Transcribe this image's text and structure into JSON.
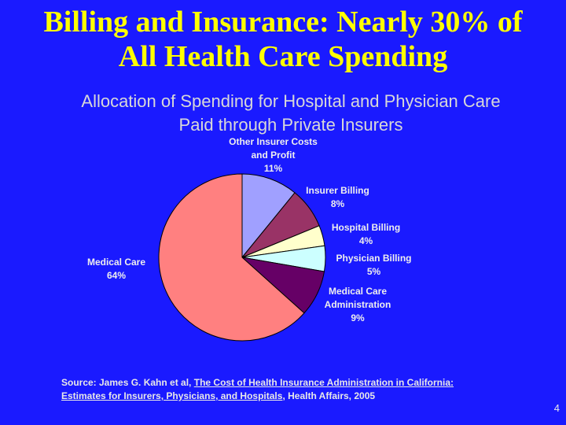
{
  "slide": {
    "title_line1": "Billing and Insurance: Nearly 30% of",
    "title_line2": "All Health Care Spending",
    "page_number": "4"
  },
  "chart_data": {
    "type": "pie",
    "title_line1": "Allocation of Spending for Hospital and Physician Care",
    "title_line2": "Paid through Private Insurers",
    "slices": [
      {
        "name_lines": [
          "Other Insurer Costs",
          "and Profit"
        ],
        "value": 11,
        "label": "11%",
        "color": "#a0a0ff"
      },
      {
        "name_lines": [
          "Insurer Billing"
        ],
        "value": 8,
        "label": "8%",
        "color": "#993366"
      },
      {
        "name_lines": [
          "Hospital Billing"
        ],
        "value": 4,
        "label": "4%",
        "color": "#ffffcc"
      },
      {
        "name_lines": [
          "Physician Billing"
        ],
        "value": 5,
        "label": "5%",
        "color": "#ccffff"
      },
      {
        "name_lines": [
          "Medical Care",
          "Administration"
        ],
        "value": 9,
        "label": "9%",
        "color": "#660066"
      },
      {
        "name_lines": [
          "Medical Care"
        ],
        "value": 64,
        "label": "64%",
        "color": "#ff8080"
      }
    ]
  },
  "source": {
    "prefix": "Source: James G. Kahn et al, ",
    "underlined_line1": "The Cost of Health Insurance Administration in California:",
    "underlined_line2": "Estimates for Insurers, Physicians, and Hospitals",
    "suffix": ", Health Affairs,  2005"
  }
}
